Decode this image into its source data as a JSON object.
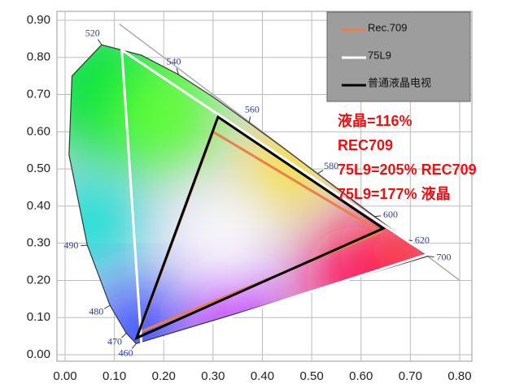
{
  "chart_data": {
    "type": "line",
    "xticks": [
      {
        "value": 0,
        "label": "0.00"
      },
      {
        "value": 0.1,
        "label": "0.10"
      },
      {
        "value": 0.2,
        "label": "0.20"
      },
      {
        "value": 0.3,
        "label": "0.30"
      },
      {
        "value": 0.4,
        "label": "0.40"
      },
      {
        "value": 0.5,
        "label": "0.50"
      },
      {
        "value": 0.6,
        "label": "0.60"
      },
      {
        "value": 0.7,
        "label": "0.70"
      },
      {
        "value": 0.8,
        "label": "0.80"
      }
    ],
    "yticks": [
      {
        "value": 0,
        "label": "0.00"
      },
      {
        "value": 0.1,
        "label": "0.10"
      },
      {
        "value": 0.2,
        "label": "0.20"
      },
      {
        "value": 0.3,
        "label": "0.30"
      },
      {
        "value": 0.4,
        "label": "0.40"
      },
      {
        "value": 0.5,
        "label": "0.50"
      },
      {
        "value": 0.6,
        "label": "0.60"
      },
      {
        "value": 0.7,
        "label": "0.70"
      },
      {
        "value": 0.8,
        "label": "0.80"
      },
      {
        "value": 0.9,
        "label": "0.90"
      }
    ],
    "xlim": [
      0,
      0.8
    ],
    "ylim": [
      0,
      0.9
    ],
    "grid": true,
    "locus": {
      "labels": [
        "460",
        "470",
        "480",
        "490",
        null,
        null,
        "520",
        null,
        "540",
        null,
        "560",
        null,
        "580",
        null,
        "600",
        "620",
        "700"
      ],
      "x": [
        0.144,
        0.124,
        0.091,
        0.045,
        0.008,
        0.014,
        0.074,
        0.155,
        0.23,
        0.302,
        0.373,
        0.444,
        0.512,
        0.575,
        0.627,
        0.691,
        0.735
      ],
      "y": [
        0.03,
        0.058,
        0.133,
        0.295,
        0.538,
        0.75,
        0.834,
        0.806,
        0.754,
        0.692,
        0.624,
        0.555,
        0.487,
        0.424,
        0.372,
        0.308,
        0.265
      ]
    },
    "series": [
      {
        "name": "Rec.709",
        "color": "#e8804a",
        "x": [
          0.64,
          0.3,
          0.15
        ],
        "y": [
          0.33,
          0.6,
          0.06
        ]
      },
      {
        "name": "75L9",
        "color": "#ffffff",
        "x": [
          0.735,
          0.115,
          0.155
        ],
        "y": [
          0.27,
          0.82,
          0.025
        ]
      },
      {
        "name": "普通液晶电视",
        "color": "#000000",
        "x": [
          0.645,
          0.31,
          0.145
        ],
        "y": [
          0.34,
          0.64,
          0.045
        ]
      }
    ],
    "annotations": [
      "液晶=116%",
      "REC709",
      "75L9=205% REC709",
      "75L9=177% 液晶"
    ],
    "legend": "upper right"
  }
}
